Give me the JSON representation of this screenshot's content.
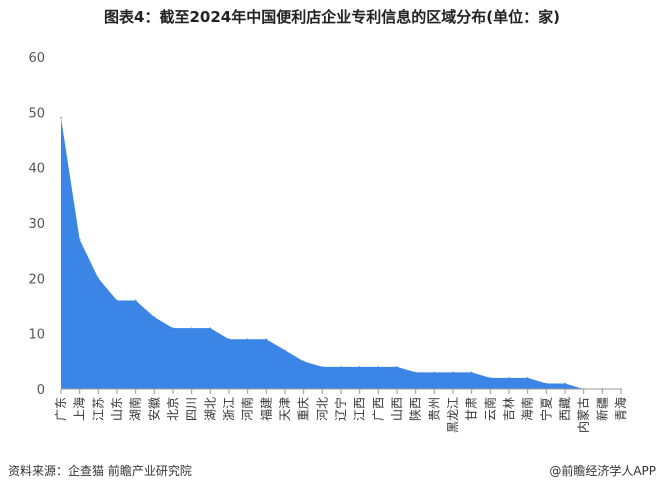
{
  "chart_data": {
    "type": "area",
    "title": "图表4：截至2024年中国便利店企业专利信息的区域分布(单位：家)",
    "categories": [
      "广东",
      "上海",
      "江苏",
      "山东",
      "湖南",
      "安徽",
      "北京",
      "四川",
      "湖北",
      "浙江",
      "河南",
      "福建",
      "天津",
      "重庆",
      "河北",
      "辽宁",
      "江西",
      "广西",
      "山西",
      "陕西",
      "贵州",
      "黑龙江",
      "甘肃",
      "云南",
      "吉林",
      "海南",
      "宁夏",
      "西藏",
      "内蒙古",
      "新疆",
      "青海"
    ],
    "series": [
      {
        "values": [
          49,
          27,
          20,
          16,
          16,
          13,
          11,
          11,
          11,
          9,
          9,
          9,
          7,
          5,
          4,
          4,
          4,
          4,
          4,
          3,
          3,
          3,
          3,
          2,
          2,
          2,
          1,
          1,
          0,
          0,
          0
        ]
      }
    ],
    "ylim": [
      0,
      60
    ],
    "yticks": [
      0,
      10,
      20,
      30,
      40,
      50,
      60
    ],
    "grid": false,
    "color": "#3a85e6"
  },
  "footer": {
    "source": "资料来源：企查猫 前瞻产业研究院",
    "brand": "@前瞻经济学人APP"
  }
}
